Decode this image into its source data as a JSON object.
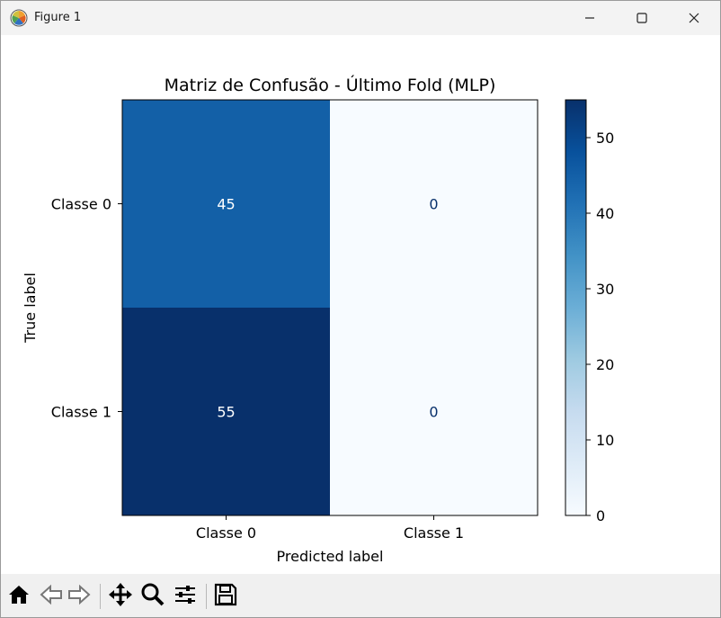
{
  "window": {
    "title": "Figure 1",
    "icon": "matplotlib-logo-icon",
    "controls": [
      "minimize-icon",
      "maximize-icon",
      "close-icon"
    ]
  },
  "toolbar": {
    "buttons": [
      {
        "name": "home-button",
        "icon": "home-icon"
      },
      {
        "name": "back-button",
        "icon": "arrow-left-icon"
      },
      {
        "name": "forward-button",
        "icon": "arrow-right-icon"
      },
      {
        "name": "pan-button",
        "icon": "move-icon"
      },
      {
        "name": "zoom-button",
        "icon": "magnifier-icon"
      },
      {
        "name": "configure-subplots-button",
        "icon": "sliders-icon"
      },
      {
        "name": "save-button",
        "icon": "floppy-disk-icon"
      }
    ]
  },
  "chart_data": {
    "type": "heatmap",
    "title": "Matriz de Confusão - Último Fold (MLP)",
    "xlabel": "Predicted label",
    "ylabel": "True label",
    "x_categories": [
      "Classe 0",
      "Classe 1"
    ],
    "y_categories": [
      "Classe 0",
      "Classe 1"
    ],
    "values": [
      [
        45,
        0
      ],
      [
        55,
        0
      ]
    ],
    "colormap": "Blues",
    "color_low": "#f7fbff",
    "color_high": "#08306b",
    "colorbar": {
      "range": [
        0,
        55
      ],
      "ticks": [
        "0",
        "10",
        "20",
        "30",
        "40",
        "50"
      ],
      "tick_values": [
        0,
        10,
        20,
        30,
        40,
        50
      ]
    }
  }
}
